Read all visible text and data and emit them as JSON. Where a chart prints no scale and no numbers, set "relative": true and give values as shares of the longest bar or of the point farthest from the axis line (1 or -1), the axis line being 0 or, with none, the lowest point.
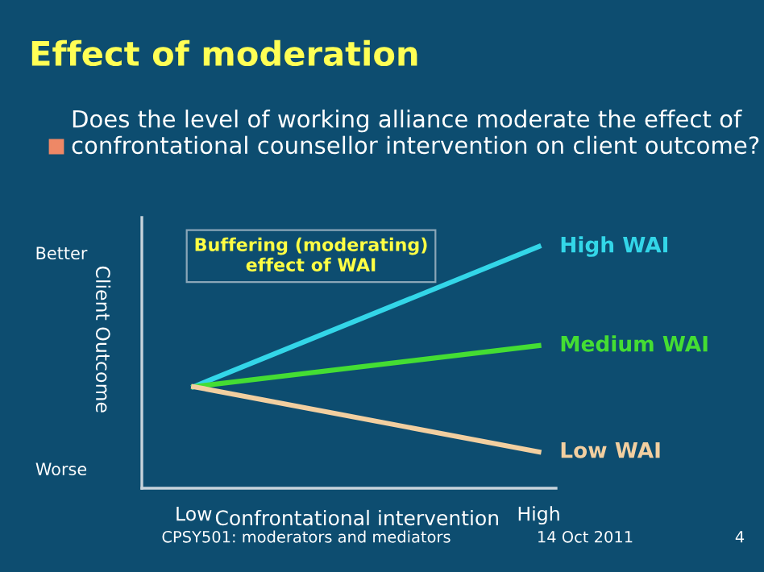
{
  "chart_data": {
    "type": "line",
    "relative": true,
    "title": "Effect of moderation",
    "subtitle": "Does the level of working alliance moderate the effect of confrontational counsellor intervention on client outcome?",
    "xlabel": "Confrontational intervention",
    "ylabel": "Client Outcome",
    "categories": [
      "Low",
      "High"
    ],
    "series": [
      {
        "name": "High WAI",
        "color": "#33d6e8",
        "values": [
          0.42,
          1
        ]
      },
      {
        "name": "Medium WAI",
        "color": "#44dd33",
        "values": [
          0.42,
          0.59
        ]
      },
      {
        "name": "Low WAI",
        "color": "#f2cfa0",
        "values": [
          0.42,
          0.15
        ]
      }
    ],
    "annotations": [
      "Better",
      "Worse",
      "Buffering (moderating) effect of WAI",
      "CPSY501: moderators and mediators",
      "14 Oct 2011",
      "4"
    ],
    "grid": false,
    "legend": false,
    "marker": "none",
    "line_style": "solid"
  }
}
